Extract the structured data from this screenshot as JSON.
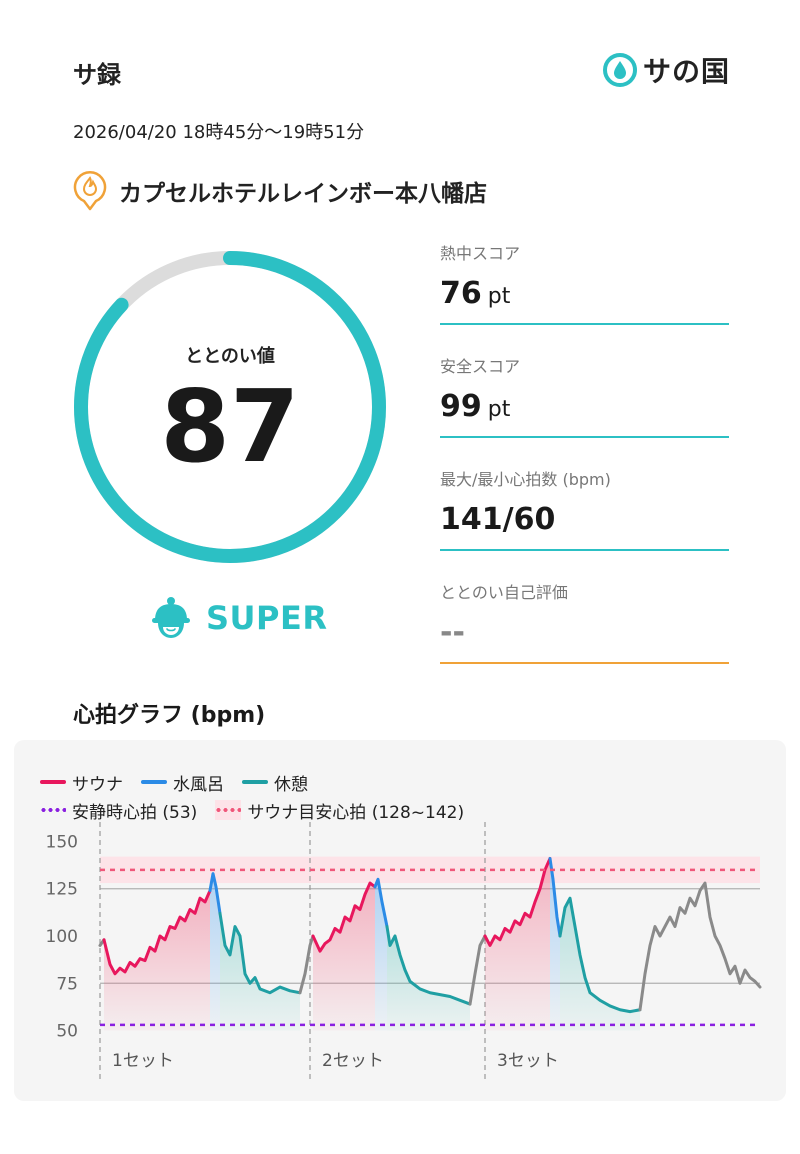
{
  "header": {
    "title": "サ録",
    "brand": "サの国"
  },
  "session": {
    "date_range": "2026/04/20 18時45分〜19時51分"
  },
  "facility": {
    "name": "カプセルホテルレインボー本八幡店"
  },
  "totonoi": {
    "label": "ととのい値",
    "value": "87",
    "fraction": 0.87,
    "rank": "SUPER"
  },
  "stats": [
    {
      "label": "熱中スコア",
      "value": "76",
      "unit": "pt"
    },
    {
      "label": "安全スコア",
      "value": "99",
      "unit": "pt"
    },
    {
      "label": "最大/最小心拍数 (bpm)",
      "value": "141/60",
      "unit": ""
    },
    {
      "label": "ととのい自己評価",
      "value": "--",
      "unit": ""
    }
  ],
  "chart_section": {
    "title": "心拍グラフ (bpm)"
  },
  "colors": {
    "accent": "#2cc0c4",
    "sauna": "#e8175d",
    "water": "#2b8be6",
    "rest": "#1f9fa3",
    "resting_hr": "#8a20e0",
    "target": "#f0577a",
    "orange": "#f0a238"
  },
  "chart_data": {
    "type": "line",
    "legend": {
      "sauna": "サウナ",
      "water": "水風呂",
      "rest": "休憩",
      "resting_hr": "安静時心拍 (53)",
      "target": "サウナ目安心拍 (128~142)"
    },
    "yticks": [
      "150",
      "125",
      "100",
      "75",
      "50"
    ],
    "ylim": [
      45,
      155
    ],
    "xlim": [
      0,
      66
    ],
    "resting_hr": 53,
    "target_range": [
      128,
      142
    ],
    "target_line": 135,
    "set_labels": [
      "1セット",
      "2セット",
      "3セット"
    ],
    "set_starts": [
      0,
      21,
      38.5
    ],
    "series": [
      {
        "type": "other",
        "points": [
          [
            0,
            95
          ],
          [
            0.4,
            98
          ]
        ]
      },
      {
        "type": "sauna",
        "points": [
          [
            0.4,
            98
          ],
          [
            1,
            85
          ],
          [
            1.5,
            80
          ],
          [
            2,
            83
          ],
          [
            2.5,
            81
          ],
          [
            3,
            86
          ],
          [
            3.5,
            84
          ],
          [
            4,
            88
          ],
          [
            4.5,
            87
          ],
          [
            5,
            94
          ],
          [
            5.5,
            92
          ],
          [
            6,
            100
          ],
          [
            6.5,
            98
          ],
          [
            7,
            105
          ],
          [
            7.5,
            104
          ],
          [
            8,
            110
          ],
          [
            8.5,
            108
          ],
          [
            9,
            114
          ],
          [
            9.5,
            112
          ],
          [
            10,
            120
          ],
          [
            10.5,
            118
          ],
          [
            11,
            124
          ]
        ]
      },
      {
        "type": "water",
        "points": [
          [
            11,
            124
          ],
          [
            11.3,
            133
          ],
          [
            11.6,
            126
          ],
          [
            12,
            112
          ]
        ]
      },
      {
        "type": "rest",
        "points": [
          [
            12,
            112
          ],
          [
            12.5,
            95
          ],
          [
            13,
            90
          ],
          [
            13.5,
            105
          ],
          [
            14,
            100
          ],
          [
            14.5,
            80
          ],
          [
            15,
            75
          ],
          [
            15.5,
            78
          ],
          [
            16,
            72
          ],
          [
            17,
            70
          ],
          [
            18,
            73
          ],
          [
            19,
            71
          ],
          [
            20,
            70
          ]
        ]
      },
      {
        "type": "other",
        "points": [
          [
            20,
            70
          ],
          [
            20.5,
            80
          ],
          [
            21,
            95
          ],
          [
            21.3,
            100
          ]
        ]
      },
      {
        "type": "sauna",
        "points": [
          [
            21.3,
            100
          ],
          [
            22,
            92
          ],
          [
            22.5,
            96
          ],
          [
            23,
            98
          ],
          [
            23.5,
            104
          ],
          [
            24,
            102
          ],
          [
            24.5,
            110
          ],
          [
            25,
            108
          ],
          [
            25.5,
            116
          ],
          [
            26,
            114
          ],
          [
            26.5,
            122
          ],
          [
            27,
            128
          ],
          [
            27.5,
            126
          ]
        ]
      },
      {
        "type": "water",
        "points": [
          [
            27.5,
            126
          ],
          [
            27.8,
            130
          ],
          [
            28.2,
            118
          ],
          [
            28.7,
            105
          ]
        ]
      },
      {
        "type": "rest",
        "points": [
          [
            28.7,
            105
          ],
          [
            29,
            95
          ],
          [
            29.5,
            100
          ],
          [
            30,
            90
          ],
          [
            30.5,
            82
          ],
          [
            31,
            76
          ],
          [
            32,
            72
          ],
          [
            33,
            70
          ],
          [
            34,
            69
          ],
          [
            35,
            68
          ],
          [
            36,
            66
          ],
          [
            37,
            64
          ]
        ]
      },
      {
        "type": "other",
        "points": [
          [
            37,
            64
          ],
          [
            37.5,
            80
          ],
          [
            38,
            95
          ],
          [
            38.5,
            100
          ]
        ]
      },
      {
        "type": "sauna",
        "points": [
          [
            38.5,
            100
          ],
          [
            39,
            95
          ],
          [
            39.5,
            100
          ],
          [
            40,
            98
          ],
          [
            40.5,
            104
          ],
          [
            41,
            102
          ],
          [
            41.5,
            108
          ],
          [
            42,
            106
          ],
          [
            42.5,
            112
          ],
          [
            43,
            110
          ],
          [
            43.5,
            118
          ],
          [
            44,
            125
          ],
          [
            44.5,
            135
          ],
          [
            45,
            141
          ]
        ]
      },
      {
        "type": "water",
        "points": [
          [
            45,
            141
          ],
          [
            45.3,
            130
          ],
          [
            45.7,
            110
          ],
          [
            46,
            100
          ]
        ]
      },
      {
        "type": "rest",
        "points": [
          [
            46,
            100
          ],
          [
            46.5,
            115
          ],
          [
            47,
            120
          ],
          [
            47.5,
            105
          ],
          [
            48,
            90
          ],
          [
            48.5,
            78
          ],
          [
            49,
            70
          ],
          [
            50,
            66
          ],
          [
            51,
            63
          ],
          [
            52,
            61
          ],
          [
            53,
            60
          ],
          [
            54,
            61
          ]
        ]
      },
      {
        "type": "other",
        "points": [
          [
            54,
            61
          ],
          [
            54.5,
            80
          ],
          [
            55,
            95
          ],
          [
            55.5,
            105
          ],
          [
            56,
            100
          ],
          [
            57,
            110
          ],
          [
            57.5,
            105
          ],
          [
            58,
            115
          ],
          [
            58.5,
            112
          ],
          [
            59,
            120
          ],
          [
            59.5,
            116
          ],
          [
            60,
            124
          ],
          [
            60.5,
            128
          ],
          [
            61,
            110
          ],
          [
            61.5,
            100
          ],
          [
            62,
            95
          ],
          [
            62.5,
            88
          ],
          [
            63,
            80
          ],
          [
            63.5,
            84
          ],
          [
            64,
            75
          ],
          [
            64.5,
            82
          ],
          [
            65,
            78
          ],
          [
            65.5,
            76
          ],
          [
            66,
            73
          ]
        ]
      }
    ]
  }
}
